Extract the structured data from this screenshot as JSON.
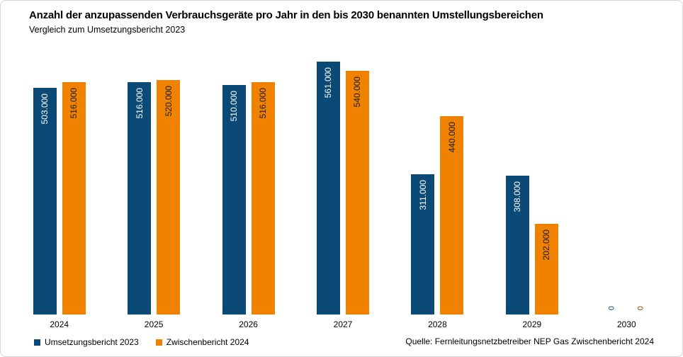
{
  "title": "Anzahl der anzupassenden Verbrauchsgeräte pro Jahr in den bis 2030 benannten Umstellungsbereichen",
  "subtitle": "Vergleich zum Umsetzungsbericht 2023",
  "source": "Quelle: Fernleitungsnetzbetreiber NEP Gas Zwischenbericht 2024",
  "colors": {
    "series1": "#0b4a76",
    "series2": "#f08200",
    "label_on_series1": "#ffffff",
    "label_on_series2": "#1a1a1a",
    "zero_label_series1": "#17436b",
    "zero_label_series2": "#843c0c",
    "text": "#000000"
  },
  "legend": [
    {
      "label": "Umsetzungsbericht 2023",
      "color": "#0b4a76"
    },
    {
      "label": "Zwischenbericht 2024",
      "color": "#f08200"
    }
  ],
  "chart_data": {
    "type": "bar",
    "categories": [
      "2024",
      "2025",
      "2026",
      "2027",
      "2028",
      "2029",
      "2030"
    ],
    "series": [
      {
        "name": "Umsetzungsbericht 2023",
        "key": "umsetzungsbericht-2023",
        "color": "#0b4a76",
        "label_color": "#ffffff",
        "zero_label_color": "#17436b",
        "values": [
          503000,
          516000,
          510000,
          561000,
          311000,
          308000,
          0
        ],
        "labels": [
          "503.000",
          "516.000",
          "510.000",
          "561.000",
          "311.000",
          "308.000",
          "0"
        ]
      },
      {
        "name": "Zwischenbericht 2024",
        "key": "zwischenbericht-2024",
        "color": "#f08200",
        "label_color": "#1a1a1a",
        "zero_label_color": "#843c0c",
        "values": [
          516000,
          520000,
          516000,
          540000,
          440000,
          202000,
          0
        ],
        "labels": [
          "516.000",
          "520.000",
          "516.000",
          "540.000",
          "440.000",
          "202.000",
          "0"
        ]
      }
    ],
    "ylim": [
      0,
      580000
    ],
    "grid": false,
    "axes_visible": false,
    "value_label_rotation": "vertical-bottom-to-top",
    "legend_position": "bottom-left",
    "xlabel": "",
    "ylabel": ""
  }
}
